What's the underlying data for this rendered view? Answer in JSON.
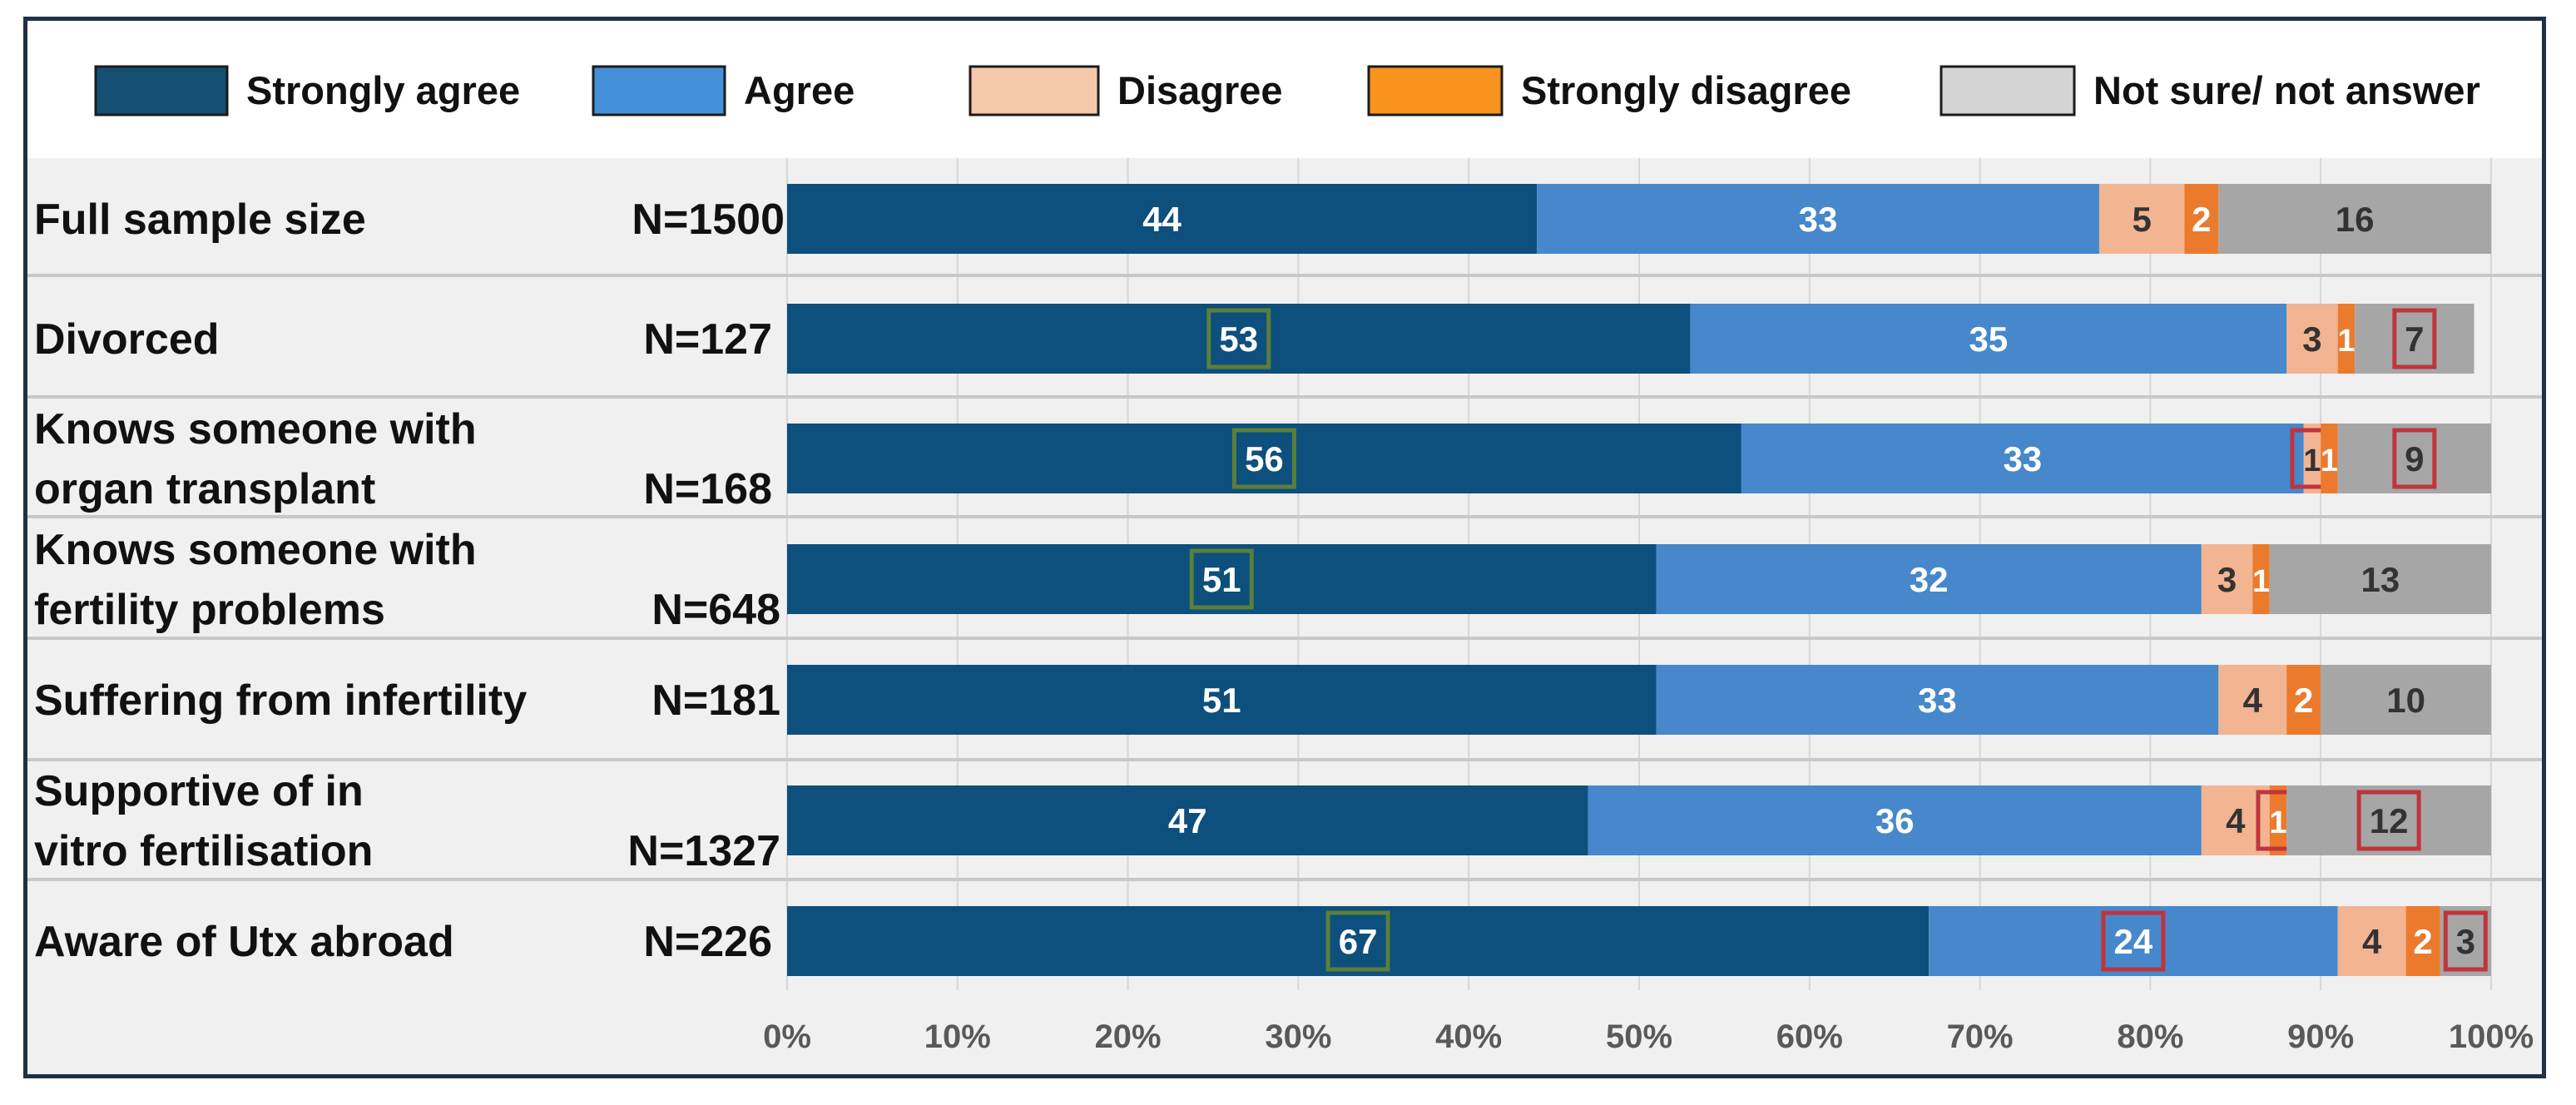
{
  "chart_data": {
    "type": "bar",
    "orientation": "horizontal",
    "stacked": "percent",
    "legend_position": "top",
    "grid": true,
    "xlim": [
      0,
      100
    ],
    "x_ticks": [
      "0%",
      "10%",
      "20%",
      "30%",
      "40%",
      "50%",
      "60%",
      "70%",
      "80%",
      "90%",
      "100%"
    ],
    "categories": [
      {
        "label": "Full sample size",
        "n": "N=1500"
      },
      {
        "label": "Divorced",
        "n": "N=127"
      },
      {
        "label": "Knows someone with organ transplant",
        "n": "N=168"
      },
      {
        "label": "Knows someone with fertility problems",
        "n": "N=648"
      },
      {
        "label": "Suffering from infertility",
        "n": "N=181"
      },
      {
        "label": "Supportive of in vitro fertilisation",
        "n": "N=1327"
      },
      {
        "label": "Aware of Utx abroad",
        "n": "N=226"
      }
    ],
    "series": [
      {
        "name": "Strongly agree",
        "color": "#0d4f7d",
        "values": [
          44,
          53,
          56,
          51,
          51,
          47,
          67
        ]
      },
      {
        "name": "Agree",
        "color": "#4688cb",
        "values": [
          33,
          35,
          33,
          32,
          33,
          36,
          24
        ]
      },
      {
        "name": "Disagree",
        "color": "#f2b491",
        "values": [
          5,
          3,
          1,
          3,
          4,
          4,
          4
        ]
      },
      {
        "name": "Strongly disagree",
        "color": "#eb7a2d",
        "values": [
          2,
          1,
          1,
          1,
          2,
          1,
          2
        ]
      },
      {
        "name": "Not sure/ not answer",
        "color": "#a6a6a6",
        "values": [
          16,
          7,
          9,
          13,
          10,
          12,
          3
        ]
      }
    ],
    "legend_swatch_colors": [
      "#154f73",
      "#4490d8",
      "#f6c8ab",
      "#f7931e",
      "#d4d4d4"
    ],
    "highlights": [
      {
        "row": 1,
        "series": 0,
        "color": "#5b7f3a"
      },
      {
        "row": 1,
        "series": 4,
        "color": "#c0343c"
      },
      {
        "row": 2,
        "series": 0,
        "color": "#5b7f3a"
      },
      {
        "row": 2,
        "series": 2,
        "color": "#c0343c"
      },
      {
        "row": 2,
        "series": 4,
        "color": "#c0343c"
      },
      {
        "row": 3,
        "series": 0,
        "color": "#5b7f3a"
      },
      {
        "row": 5,
        "series": 3,
        "color": "#c0343c"
      },
      {
        "row": 5,
        "series": 4,
        "color": "#c0343c"
      },
      {
        "row": 6,
        "series": 0,
        "color": "#5b7f3a"
      },
      {
        "row": 6,
        "series": 1,
        "color": "#c0343c"
      },
      {
        "row": 6,
        "series": 4,
        "color": "#c0343c"
      }
    ]
  }
}
